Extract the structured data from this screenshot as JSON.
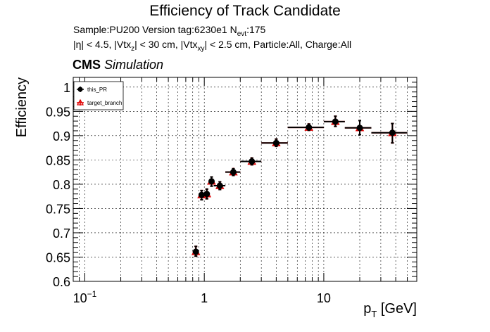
{
  "title": "Efficiency of Track Candidate",
  "info": {
    "sample_prefix": "Sample:PU200   Version tag:6230e1  N",
    "nevt_sub": "evt",
    "nevt_value": ":175",
    "cuts_part1": "|η| < 4.5, |Vtx",
    "cuts_sub1": "z",
    "cuts_part2": "| < 30 cm, |Vtx",
    "cuts_sub2": "xy",
    "cuts_part3": "| < 2.5 cm, Particle:All, Charge:All"
  },
  "cms": {
    "bold": "CMS",
    "italic": "Simulation"
  },
  "chart_data": {
    "type": "scatter",
    "title": "Efficiency of Track Candidate",
    "xlabel": "p_T [GeV]",
    "ylabel": "Efficiency",
    "xscale": "log",
    "xlim": [
      0.08,
      60
    ],
    "ylim": [
      0.6,
      1.02
    ],
    "grid": true,
    "legend_position": "top-left",
    "x_ticks": [
      {
        "value": 0.1,
        "base": "10",
        "exp": "−1"
      },
      {
        "value": 1,
        "label": "1"
      },
      {
        "value": 10,
        "label": "10"
      }
    ],
    "y_ticks": [
      0.6,
      0.65,
      0.7,
      0.75,
      0.8,
      0.85,
      0.9,
      0.95,
      1
    ],
    "y_tick_labels": [
      "0.6",
      "0.65",
      "0.7",
      "0.75",
      "0.8",
      "0.85",
      "0.9",
      "0.95",
      "1"
    ],
    "series": [
      {
        "name": "this_PR",
        "color": "#000000",
        "marker": "circle",
        "points": [
          {
            "x": 0.85,
            "xlo": 0.8,
            "xhi": 0.9,
            "y": 0.661,
            "ylo": 0.652,
            "yhi": 0.672
          },
          {
            "x": 0.95,
            "xlo": 0.9,
            "xhi": 1.0,
            "y": 0.778,
            "ylo": 0.768,
            "yhi": 0.787
          },
          {
            "x": 1.05,
            "xlo": 1.0,
            "xhi": 1.1,
            "y": 0.78,
            "ylo": 0.77,
            "yhi": 0.79
          },
          {
            "x": 1.15,
            "xlo": 1.1,
            "xhi": 1.2,
            "y": 0.806,
            "ylo": 0.796,
            "yhi": 0.815
          },
          {
            "x": 1.35,
            "xlo": 1.2,
            "xhi": 1.5,
            "y": 0.797,
            "ylo": 0.789,
            "yhi": 0.805
          },
          {
            "x": 1.75,
            "xlo": 1.5,
            "xhi": 2.0,
            "y": 0.825,
            "ylo": 0.818,
            "yhi": 0.832
          },
          {
            "x": 2.5,
            "xlo": 2.0,
            "xhi": 3.0,
            "y": 0.847,
            "ylo": 0.84,
            "yhi": 0.854
          },
          {
            "x": 4.0,
            "xlo": 3.0,
            "xhi": 5.0,
            "y": 0.885,
            "ylo": 0.878,
            "yhi": 0.893
          },
          {
            "x": 7.5,
            "xlo": 5.0,
            "xhi": 10.0,
            "y": 0.917,
            "ylo": 0.911,
            "yhi": 0.924
          },
          {
            "x": 12.5,
            "xlo": 10.0,
            "xhi": 15.0,
            "y": 0.929,
            "ylo": 0.919,
            "yhi": 0.94
          },
          {
            "x": 20.0,
            "xlo": 15.0,
            "xhi": 25.0,
            "y": 0.916,
            "ylo": 0.902,
            "yhi": 0.931
          },
          {
            "x": 37.5,
            "xlo": 25.0,
            "xhi": 50.0,
            "y": 0.906,
            "ylo": 0.885,
            "yhi": 0.925
          }
        ]
      },
      {
        "name": "target_branch",
        "color": "#e00000",
        "marker": "triangle-open",
        "points": [
          {
            "x": 0.85,
            "xlo": 0.8,
            "xhi": 0.9,
            "y": 0.661,
            "ylo": 0.652,
            "yhi": 0.672
          },
          {
            "x": 0.95,
            "xlo": 0.9,
            "xhi": 1.0,
            "y": 0.778,
            "ylo": 0.768,
            "yhi": 0.787
          },
          {
            "x": 1.05,
            "xlo": 1.0,
            "xhi": 1.1,
            "y": 0.78,
            "ylo": 0.77,
            "yhi": 0.79
          },
          {
            "x": 1.15,
            "xlo": 1.1,
            "xhi": 1.2,
            "y": 0.806,
            "ylo": 0.796,
            "yhi": 0.815
          },
          {
            "x": 1.35,
            "xlo": 1.2,
            "xhi": 1.5,
            "y": 0.797,
            "ylo": 0.789,
            "yhi": 0.805
          },
          {
            "x": 1.75,
            "xlo": 1.5,
            "xhi": 2.0,
            "y": 0.825,
            "ylo": 0.818,
            "yhi": 0.832
          },
          {
            "x": 2.5,
            "xlo": 2.0,
            "xhi": 3.0,
            "y": 0.847,
            "ylo": 0.84,
            "yhi": 0.854
          },
          {
            "x": 4.0,
            "xlo": 3.0,
            "xhi": 5.0,
            "y": 0.885,
            "ylo": 0.878,
            "yhi": 0.893
          },
          {
            "x": 7.5,
            "xlo": 5.0,
            "xhi": 10.0,
            "y": 0.917,
            "ylo": 0.911,
            "yhi": 0.924
          },
          {
            "x": 12.5,
            "xlo": 10.0,
            "xhi": 15.0,
            "y": 0.929,
            "ylo": 0.919,
            "yhi": 0.94
          },
          {
            "x": 20.0,
            "xlo": 15.0,
            "xhi": 25.0,
            "y": 0.916,
            "ylo": 0.902,
            "yhi": 0.931
          },
          {
            "x": 37.5,
            "xlo": 25.0,
            "xhi": 50.0,
            "y": 0.906,
            "ylo": 0.885,
            "yhi": 0.925
          }
        ]
      }
    ]
  }
}
